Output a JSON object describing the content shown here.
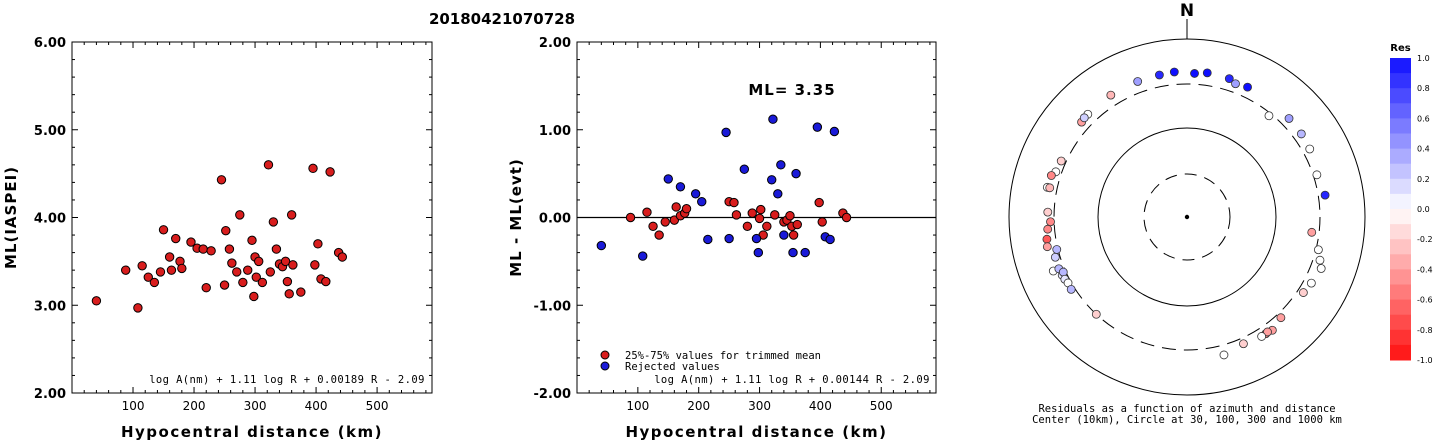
{
  "title": "20180421070728",
  "chart_data": [
    {
      "type": "scatter",
      "id": "left",
      "xlabel": "Hypocentral distance (km)",
      "ylabel": "ML(IASPEI)",
      "xlim": [
        0,
        590
      ],
      "ylim": [
        2.0,
        6.0
      ],
      "x_ticks": [
        100,
        200,
        300,
        400,
        500
      ],
      "y_ticks": [
        "2.00",
        "3.00",
        "4.00",
        "5.00",
        "6.00"
      ],
      "formula": "log A(nm) + 1.11 log R + 0.00189 R - 2.09",
      "marker_color": "#d81d1d",
      "points": [
        [
          40,
          3.05
        ],
        [
          88,
          3.4
        ],
        [
          108,
          2.97
        ],
        [
          115,
          3.45
        ],
        [
          125,
          3.32
        ],
        [
          135,
          3.26
        ],
        [
          145,
          3.38
        ],
        [
          150,
          3.86
        ],
        [
          160,
          3.55
        ],
        [
          163,
          3.4
        ],
        [
          170,
          3.76
        ],
        [
          177,
          3.5
        ],
        [
          180,
          3.42
        ],
        [
          195,
          3.72
        ],
        [
          205,
          3.65
        ],
        [
          215,
          3.64
        ],
        [
          220,
          3.2
        ],
        [
          228,
          3.62
        ],
        [
          245,
          4.43
        ],
        [
          250,
          3.23
        ],
        [
          252,
          3.85
        ],
        [
          258,
          3.64
        ],
        [
          262,
          3.48
        ],
        [
          270,
          3.38
        ],
        [
          275,
          4.03
        ],
        [
          280,
          3.26
        ],
        [
          288,
          3.4
        ],
        [
          295,
          3.74
        ],
        [
          298,
          3.1
        ],
        [
          300,
          3.55
        ],
        [
          302,
          3.32
        ],
        [
          306,
          3.5
        ],
        [
          312,
          3.26
        ],
        [
          322,
          4.6
        ],
        [
          325,
          3.38
        ],
        [
          330,
          3.95
        ],
        [
          335,
          3.64
        ],
        [
          340,
          3.47
        ],
        [
          345,
          3.44
        ],
        [
          350,
          3.5
        ],
        [
          353,
          3.27
        ],
        [
          356,
          3.13
        ],
        [
          360,
          4.03
        ],
        [
          362,
          3.46
        ],
        [
          375,
          3.15
        ],
        [
          395,
          4.56
        ],
        [
          398,
          3.46
        ],
        [
          403,
          3.7
        ],
        [
          408,
          3.3
        ],
        [
          416,
          3.27
        ],
        [
          423,
          4.52
        ],
        [
          437,
          3.6
        ],
        [
          443,
          3.55
        ]
      ]
    },
    {
      "type": "scatter",
      "id": "middle",
      "xlabel": "Hypocentral distance (km)",
      "ylabel": "ML - ML(evt)",
      "xlim": [
        0,
        590
      ],
      "ylim": [
        -2.0,
        2.0
      ],
      "x_ticks": [
        100,
        200,
        300,
        400,
        500
      ],
      "y_ticks": [
        "-2.00",
        "-1.00",
        "0.00",
        "1.00",
        "2.00"
      ],
      "annotation": "ML= 3.35",
      "legend": [
        "25%-75% values for trimmed mean",
        "Rejected values"
      ],
      "formula": "log A(nm) + 1.11 log R + 0.00144 R - 2.09",
      "series": [
        {
          "name": "25%-75% values for trimmed mean",
          "color": "#d81d1d",
          "points": [
            [
              88,
              0.0
            ],
            [
              115,
              0.06
            ],
            [
              125,
              -0.1
            ],
            [
              135,
              -0.2
            ],
            [
              145,
              -0.05
            ],
            [
              160,
              -0.03
            ],
            [
              163,
              0.12
            ],
            [
              170,
              0.02
            ],
            [
              177,
              0.05
            ],
            [
              180,
              0.1
            ],
            [
              250,
              0.18
            ],
            [
              258,
              0.17
            ],
            [
              262,
              0.03
            ],
            [
              280,
              -0.1
            ],
            [
              288,
              0.05
            ],
            [
              300,
              -0.01
            ],
            [
              302,
              0.09
            ],
            [
              306,
              -0.2
            ],
            [
              312,
              -0.1
            ],
            [
              325,
              0.03
            ],
            [
              340,
              -0.05
            ],
            [
              345,
              -0.03
            ],
            [
              350,
              0.02
            ],
            [
              353,
              -0.1
            ],
            [
              356,
              -0.2
            ],
            [
              362,
              -0.08
            ],
            [
              398,
              0.17
            ],
            [
              403,
              -0.05
            ],
            [
              437,
              0.05
            ],
            [
              443,
              0.0
            ]
          ]
        },
        {
          "name": "Rejected values",
          "color": "#1a1ad8",
          "points": [
            [
              40,
              -0.32
            ],
            [
              108,
              -0.44
            ],
            [
              150,
              0.44
            ],
            [
              170,
              0.35
            ],
            [
              195,
              0.27
            ],
            [
              205,
              0.18
            ],
            [
              215,
              -0.25
            ],
            [
              245,
              0.97
            ],
            [
              250,
              -0.24
            ],
            [
              275,
              0.55
            ],
            [
              295,
              -0.24
            ],
            [
              298,
              -0.4
            ],
            [
              320,
              0.43
            ],
            [
              322,
              1.12
            ],
            [
              330,
              0.27
            ],
            [
              335,
              0.6
            ],
            [
              340,
              -0.2
            ],
            [
              355,
              -0.4
            ],
            [
              360,
              0.5
            ],
            [
              375,
              -0.4
            ],
            [
              395,
              1.03
            ],
            [
              408,
              -0.22
            ],
            [
              416,
              -0.25
            ],
            [
              423,
              0.98
            ]
          ]
        }
      ]
    },
    {
      "type": "scatter",
      "id": "polar",
      "north_label": "N",
      "caption_line1": "Residuals as a function of azimuth and distance",
      "caption_line2": "Center (10km), Circle at 30, 100, 300 and 1000 km",
      "colorbar_title": "Res",
      "colorbar_ticks": [
        "1.0",
        "0.8",
        "0.6",
        "0.4",
        "0.2",
        "0.0",
        "-0.2",
        "-0.4",
        "-0.6",
        "-0.8",
        "-1.0"
      ],
      "points_azimuth_distance_residual": [
        [
          355,
          420,
          1.0
        ],
        [
          8,
          420,
          1.0
        ],
        [
          349,
          410,
          0.9
        ],
        [
          17,
          410,
          0.9
        ],
        [
          3,
          400,
          1.0
        ],
        [
          25,
          395,
          1.0
        ],
        [
          20,
          380,
          0.4
        ],
        [
          340,
          405,
          0.4
        ],
        [
          328,
          400,
          -0.3
        ],
        [
          316,
          390,
          0.0
        ],
        [
          312,
          380,
          -0.4
        ],
        [
          314,
          390,
          0.2
        ],
        [
          46,
          380,
          0.4
        ],
        [
          54,
          375,
          0.3
        ],
        [
          61,
          365,
          0.0
        ],
        [
          81,
          360,
          0.9
        ],
        [
          72,
          330,
          0.0
        ],
        [
          104,
          320,
          0.0
        ],
        [
          108,
          360,
          0.0
        ],
        [
          111,
          400,
          0.0
        ],
        [
          118,
          370,
          0.0
        ],
        [
          123,
          350,
          -0.2
        ],
        [
          137,
          340,
          -0.4
        ],
        [
          143,
          380,
          -0.4
        ],
        [
          146,
          370,
          -0.5
        ],
        [
          145,
          365,
          -0.4
        ],
        [
          148,
          370,
          0.0
        ],
        [
          156,
          350,
          -0.2
        ],
        [
          165,
          390,
          0.0
        ],
        [
          223,
          300,
          -0.2
        ],
        [
          97,
          250,
          -0.4
        ],
        [
          39,
          280,
          0.0
        ],
        [
          282,
          390,
          0.0
        ],
        [
          289,
          350,
          0.0
        ],
        [
          294,
          340,
          -0.2
        ],
        [
          287,
          380,
          -0.5
        ],
        [
          282,
          365,
          -0.3
        ],
        [
          265,
          360,
          -0.5
        ],
        [
          261,
          380,
          -0.7
        ],
        [
          258,
          390,
          -0.4
        ],
        [
          248,
          405,
          0.0
        ],
        [
          253,
          340,
          0.2
        ],
        [
          248,
          345,
          0.3
        ],
        [
          245,
          340,
          0.1
        ],
        [
          256,
          310,
          0.3
        ],
        [
          246,
          320,
          0.3
        ],
        [
          243,
          335,
          0.1
        ],
        [
          241,
          325,
          0.0
        ],
        [
          238,
          330,
          0.3
        ],
        [
          272,
          355,
          -0.2
        ],
        [
          268,
          330,
          -0.5
        ]
      ]
    }
  ]
}
